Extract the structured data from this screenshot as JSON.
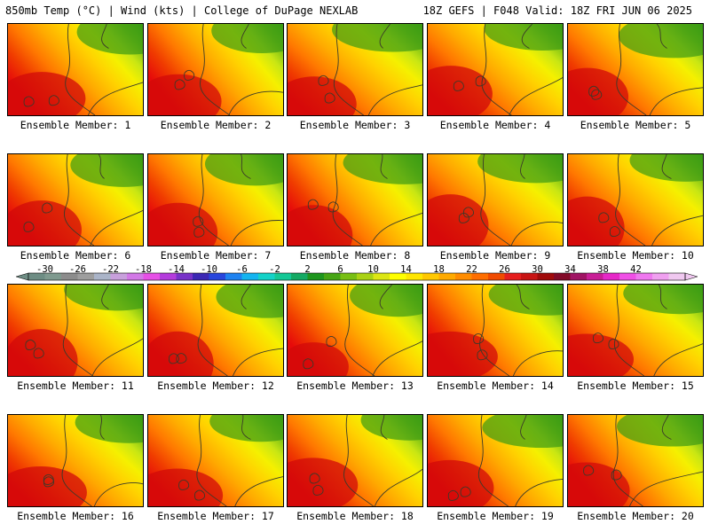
{
  "header": {
    "left_title": "850mb Temp (°C) | Wind (kts) | College of DuPage NEXLAB",
    "right_title": "18Z GEFS | F048 Valid: 18Z FRI JUN 06 2025"
  },
  "panels": [
    {
      "label": "Ensemble Member: 1"
    },
    {
      "label": "Ensemble Member: 2"
    },
    {
      "label": "Ensemble Member: 3"
    },
    {
      "label": "Ensemble Member: 4"
    },
    {
      "label": "Ensemble Member: 5"
    },
    {
      "label": "Ensemble Member: 6"
    },
    {
      "label": "Ensemble Member: 7"
    },
    {
      "label": "Ensemble Member: 8"
    },
    {
      "label": "Ensemble Member: 9"
    },
    {
      "label": "Ensemble Member: 10"
    },
    {
      "label": "Ensemble Member: 11"
    },
    {
      "label": "Ensemble Member: 12"
    },
    {
      "label": "Ensemble Member: 13"
    },
    {
      "label": "Ensemble Member: 14"
    },
    {
      "label": "Ensemble Member: 15"
    },
    {
      "label": "Ensemble Member: 16"
    },
    {
      "label": "Ensemble Member: 17"
    },
    {
      "label": "Ensemble Member: 18"
    },
    {
      "label": "Ensemble Member: 19"
    },
    {
      "label": "Ensemble Member: 20"
    }
  ],
  "colorbar": {
    "labels": [
      "-30",
      "-26",
      "-22",
      "-18",
      "-14",
      "-10",
      "-6",
      "-2",
      "2",
      "6",
      "10",
      "14",
      "18",
      "22",
      "26",
      "30",
      "34",
      "38",
      "42"
    ],
    "colors": [
      "#6e8d84",
      "#7f9a8f",
      "#8c8c8c",
      "#9e9e9e",
      "#aab4c8",
      "#c8a0dc",
      "#d278e6",
      "#e650e6",
      "#b43cdc",
      "#7832c8",
      "#3c28b4",
      "#2846dc",
      "#1e82f0",
      "#14b4f0",
      "#14d2c8",
      "#14c896",
      "#14aa64",
      "#1e961e",
      "#46a514",
      "#78bf14",
      "#aad214",
      "#dce614",
      "#ffff00",
      "#ffe600",
      "#ffc800",
      "#ffaa00",
      "#ff8c00",
      "#ff6e00",
      "#f04b00",
      "#e61e1e",
      "#c81414",
      "#a00a0a",
      "#820a28",
      "#a01464",
      "#c81e96",
      "#e628c8",
      "#f050e6",
      "#f078f0",
      "#f0a0f0",
      "#f0c8f0"
    ]
  }
}
